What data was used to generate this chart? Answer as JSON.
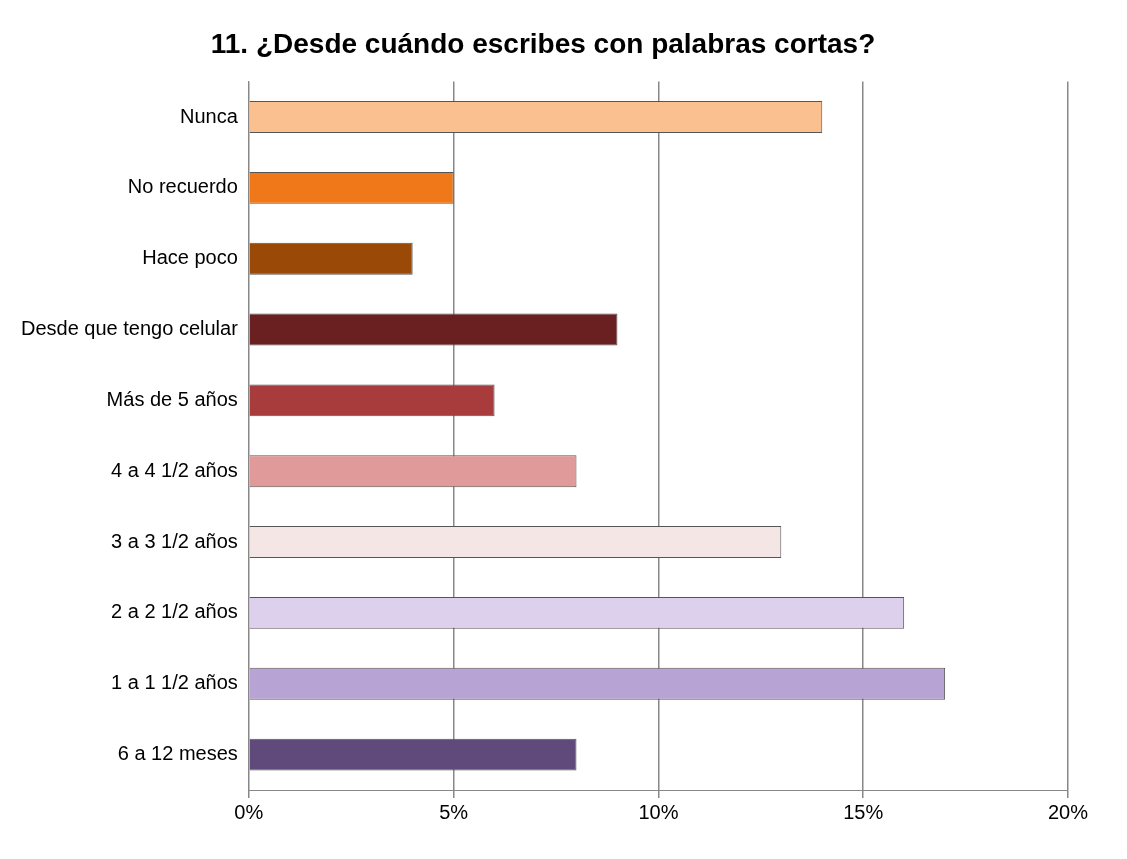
{
  "chart_data": {
    "type": "bar",
    "orientation": "horizontal",
    "title": "11. ¿Desde cuándo escribes con palabras cortas?",
    "categories": [
      "Nunca",
      "No recuerdo",
      "Hace poco",
      "Desde que tengo celular",
      "Más de 5 años",
      "4 a 4 1/2 años",
      "3 a 3 1/2 años",
      "2 a 2 1/2 años",
      "1 a 1 1/2 años",
      "6 a 12 meses"
    ],
    "values": [
      14,
      5,
      4,
      9,
      6,
      8,
      13,
      16,
      17,
      8
    ],
    "colors": [
      "#fac090",
      "#f07818",
      "#9a4a06",
      "#6a2020",
      "#a83c3c",
      "#e09a9a",
      "#f5e6e6",
      "#dcd0ec",
      "#b8a4d4",
      "#604a7b"
    ],
    "xlim": [
      0,
      20
    ],
    "xticks": [
      {
        "value": 0,
        "label": "0%"
      },
      {
        "value": 5,
        "label": "5%"
      },
      {
        "value": 10,
        "label": "10%"
      },
      {
        "value": 15,
        "label": "15%"
      },
      {
        "value": 20,
        "label": "20%"
      }
    ],
    "grid": "x",
    "legend": false
  }
}
